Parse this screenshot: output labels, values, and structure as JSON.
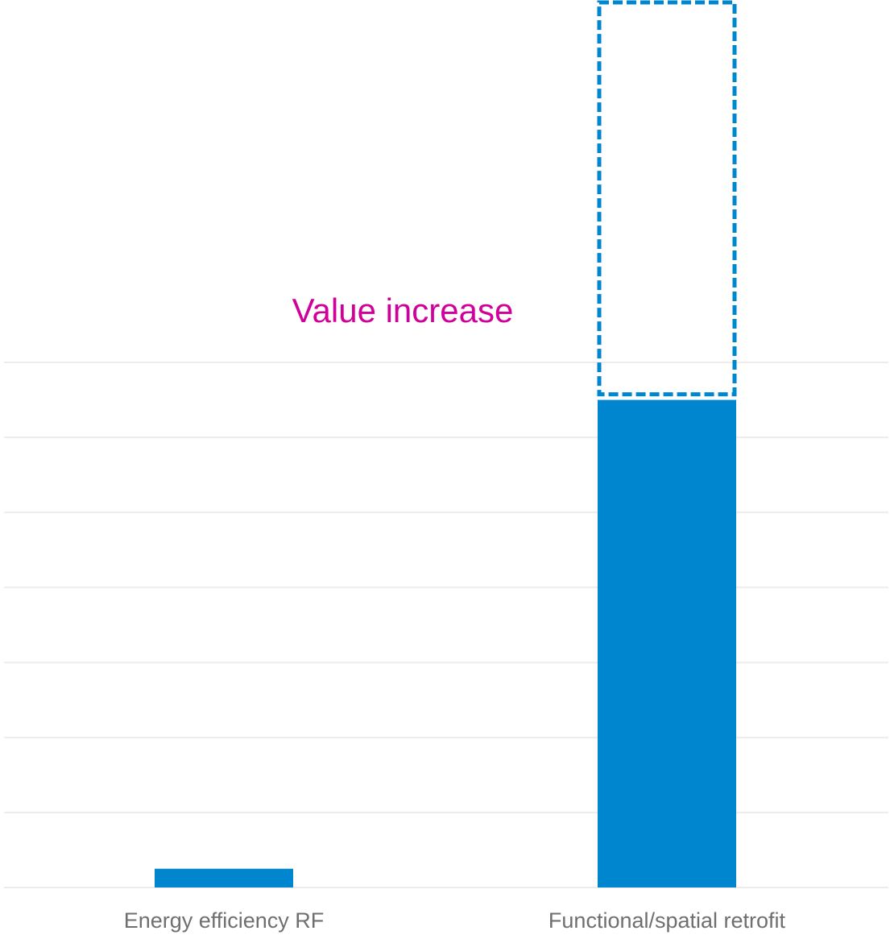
{
  "chart_data": {
    "type": "bar",
    "categories": [
      "Energy efficiency RF",
      "Functional/spatial retrofit"
    ],
    "series": [
      {
        "values": [
          0.25,
          6.5
        ]
      }
    ],
    "stacked_increase": [
      0,
      5.3
    ],
    "annotation": "Value increase",
    "ylim": [
      0,
      7
    ],
    "gridlines": [
      1,
      2,
      3,
      4,
      5,
      6,
      7
    ],
    "y_tick_labels_shown": false,
    "grid": true,
    "legend": "none",
    "colors": {
      "bar": "#0085CF",
      "increase_outline": "#0085CF",
      "annotation": "#D1009A",
      "grid": "#ececec",
      "tick_text": "#6f6f6f"
    }
  }
}
